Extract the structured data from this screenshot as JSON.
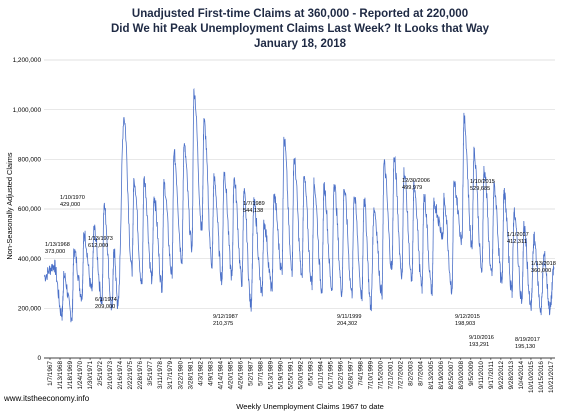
{
  "chart_data": {
    "type": "line",
    "title_lines": [
      "Unadjusted First-time Claims at 360,000 - Reported at 220,000",
      "Did We hit Peak Unemployment Claims Last Week? It Looks that Way",
      "January 18, 2018"
    ],
    "xlabel": "Weekly Unemployment Claims 1967 to date",
    "ylabel": "Non-Seasonally Adjusted Claims",
    "ylim": [
      0,
      1200000
    ],
    "y_ticks": [
      "0",
      "200,000",
      "400,000",
      "600,000",
      "800,000",
      "1,000,000",
      "1,200,000"
    ],
    "grid": true,
    "legend": "none",
    "line_color": "#4a6fc7",
    "series": [
      {
        "values": [
          [
            1967.0,
            330000
          ],
          [
            1968.0,
            373000
          ],
          [
            1968.8,
            175000
          ],
          [
            1969.0,
            330000
          ],
          [
            1969.8,
            165000
          ],
          [
            1970.0,
            429000
          ],
          [
            1970.8,
            250000
          ],
          [
            1971.0,
            500000
          ],
          [
            1971.8,
            270000
          ],
          [
            1972.0,
            520000
          ],
          [
            1972.8,
            230000
          ],
          [
            1973.0,
            612000
          ],
          [
            1973.8,
            200000
          ],
          [
            1974.0,
            430000
          ],
          [
            1974.4,
            209000
          ],
          [
            1975.0,
            970000
          ],
          [
            1975.8,
            350000
          ],
          [
            1976.0,
            720000
          ],
          [
            1976.8,
            300000
          ],
          [
            1977.0,
            720000
          ],
          [
            1977.8,
            320000
          ],
          [
            1978.0,
            650000
          ],
          [
            1978.8,
            290000
          ],
          [
            1979.0,
            700000
          ],
          [
            1979.8,
            340000
          ],
          [
            1980.0,
            820000
          ],
          [
            1980.8,
            400000
          ],
          [
            1981.0,
            850000
          ],
          [
            1981.8,
            450000
          ],
          [
            1982.0,
            1075000
          ],
          [
            1982.8,
            520000
          ],
          [
            1983.0,
            950000
          ],
          [
            1983.8,
            380000
          ],
          [
            1984.0,
            720000
          ],
          [
            1984.8,
            320000
          ],
          [
            1985.0,
            750000
          ],
          [
            1985.8,
            330000
          ],
          [
            1986.0,
            720000
          ],
          [
            1986.8,
            310000
          ],
          [
            1987.0,
            660000
          ],
          [
            1987.7,
            210375
          ],
          [
            1988.0,
            620000
          ],
          [
            1988.8,
            260000
          ],
          [
            1989.0,
            544138
          ],
          [
            1989.8,
            280000
          ],
          [
            1990.0,
            650000
          ],
          [
            1990.8,
            350000
          ],
          [
            1991.0,
            880000
          ],
          [
            1991.8,
            350000
          ],
          [
            1992.0,
            800000
          ],
          [
            1992.8,
            330000
          ],
          [
            1993.0,
            720000
          ],
          [
            1993.8,
            300000
          ],
          [
            1994.0,
            700000
          ],
          [
            1994.8,
            280000
          ],
          [
            1995.0,
            690000
          ],
          [
            1995.8,
            280000
          ],
          [
            1996.0,
            700000
          ],
          [
            1996.8,
            270000
          ],
          [
            1997.0,
            680000
          ],
          [
            1997.8,
            260000
          ],
          [
            1998.0,
            650000
          ],
          [
            1998.8,
            250000
          ],
          [
            1999.0,
            640000
          ],
          [
            1999.7,
            204302
          ],
          [
            2000.0,
            600000
          ],
          [
            2000.8,
            260000
          ],
          [
            2001.0,
            780000
          ],
          [
            2001.8,
            360000
          ],
          [
            2002.0,
            800000
          ],
          [
            2002.8,
            340000
          ],
          [
            2003.0,
            750000
          ],
          [
            2003.8,
            310000
          ],
          [
            2004.0,
            700000
          ],
          [
            2004.8,
            280000
          ],
          [
            2005.0,
            650000
          ],
          [
            2005.8,
            270000
          ],
          [
            2006.0,
            620000
          ],
          [
            2006.9,
            499979
          ],
          [
            2007.0,
            640000
          ],
          [
            2007.8,
            280000
          ],
          [
            2008.0,
            700000
          ],
          [
            2008.8,
            480000
          ],
          [
            2009.0,
            960000
          ],
          [
            2009.8,
            450000
          ],
          [
            2010.0,
            830000
          ],
          [
            2010.8,
            350000
          ],
          [
            2011.0,
            760000
          ],
          [
            2011.8,
            330000
          ],
          [
            2012.0,
            690000
          ],
          [
            2012.8,
            300000
          ],
          [
            2013.0,
            660000
          ],
          [
            2013.8,
            270000
          ],
          [
            2014.0,
            580000
          ],
          [
            2014.8,
            240000
          ],
          [
            2015.0,
            529685
          ],
          [
            2015.7,
            198903
          ],
          [
            2016.0,
            480000
          ],
          [
            2016.7,
            193291
          ],
          [
            2017.0,
            412311
          ],
          [
            2017.6,
            195130
          ],
          [
            2018.0,
            360000
          ]
        ]
      }
    ],
    "x_ticks": [
      "1/7/1967",
      "1/13/1968",
      "1/18/1969",
      "1/24/1970",
      "1/30/1971",
      "2/5/1972",
      "2/10/1973",
      "2/16/1974",
      "2/22/1975",
      "2/28/1976",
      "3/5/1977",
      "3/11/1978",
      "3/17/1979",
      "3/22/1980",
      "3/28/1981",
      "4/3/1982",
      "4/9/1983",
      "4/14/1984",
      "4/20/1985",
      "4/26/1986",
      "5/2/1987",
      "5/7/1988",
      "5/13/1989",
      "5/19/1990",
      "5/25/1991",
      "5/30/1992",
      "6/5/1993",
      "6/11/1994",
      "6/17/1995",
      "6/22/1996",
      "6/28/1997",
      "7/4/1998",
      "7/10/1999",
      "7/15/2000",
      "7/21/2001",
      "7/27/2002",
      "8/2/2003",
      "8/7/2004",
      "8/13/2005",
      "8/19/2006",
      "8/25/2007",
      "8/30/2008",
      "9/5/2009",
      "9/11/2010",
      "9/17/2011",
      "9/22/2012",
      "9/28/2013",
      "10/4/2014",
      "10/10/2015",
      "10/15/2016",
      "10/21/2017"
    ],
    "annotations": [
      {
        "lines": [
          "1/13/1968",
          "373,000"
        ]
      },
      {
        "lines": [
          "1/10/1970",
          "429,000"
        ]
      },
      {
        "lines": [
          "1/13/1973",
          "612,000"
        ]
      },
      {
        "lines": [
          "6/1/1974",
          "209,000"
        ]
      },
      {
        "lines": [
          "1/7/1989",
          "544,138"
        ]
      },
      {
        "lines": [
          "9/12/1987",
          "210,375"
        ]
      },
      {
        "lines": [
          "9/11/1999",
          "204,302"
        ]
      },
      {
        "lines": [
          "12/30/2006",
          "499,979"
        ]
      },
      {
        "lines": [
          "1/10/2015",
          "529,685"
        ]
      },
      {
        "lines": [
          "1/1/2017",
          "412,311"
        ]
      },
      {
        "lines": [
          "1/13/2018",
          "360,000"
        ]
      },
      {
        "lines": [
          "9/12/2015",
          "198,903"
        ]
      },
      {
        "lines": [
          "9/10/2016",
          "193,291"
        ]
      },
      {
        "lines": [
          "8/19/2017",
          "195,130"
        ]
      }
    ]
  },
  "footer": {
    "site": "www.itstheeconomy.info"
  }
}
